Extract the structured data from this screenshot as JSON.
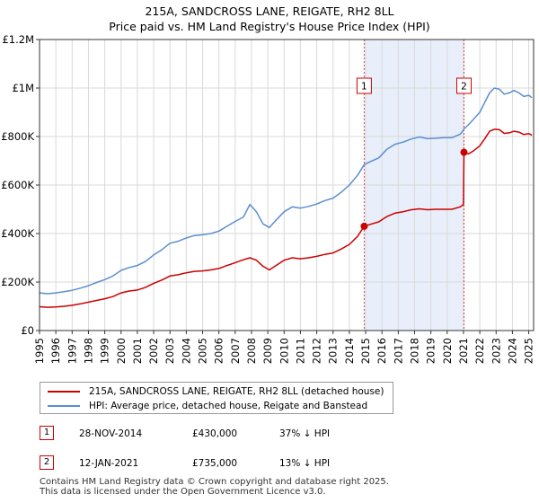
{
  "chart_data": {
    "type": "line",
    "title": "215A, SANDCROSS LANE, REIGATE, RH2 8LL",
    "subtitle": "Price paid vs. HM Land Registry's House Price Index (HPI)",
    "xlabel": "",
    "ylabel": "",
    "xlim": [
      1995,
      2025.3
    ],
    "ylim": [
      0,
      1200000
    ],
    "y_ticks": [
      {
        "value": 0,
        "label": "£0"
      },
      {
        "value": 200000,
        "label": "£200K"
      },
      {
        "value": 400000,
        "label": "£400K"
      },
      {
        "value": 600000,
        "label": "£600K"
      },
      {
        "value": 800000,
        "label": "£800K"
      },
      {
        "value": 1000000,
        "label": "£1M"
      },
      {
        "value": 1200000,
        "label": "£1.2M"
      }
    ],
    "x_ticks": [
      "1995",
      "1996",
      "1997",
      "1998",
      "1999",
      "2000",
      "2001",
      "2002",
      "2003",
      "2004",
      "2005",
      "2006",
      "2007",
      "2008",
      "2009",
      "2010",
      "2011",
      "2012",
      "2013",
      "2014",
      "2015",
      "2016",
      "2017",
      "2018",
      "2019",
      "2020",
      "2021",
      "2022",
      "2023",
      "2024",
      "2025"
    ],
    "grid": true,
    "series": [
      {
        "name": "215A, SANDCROSS LANE, REIGATE, RH2 8LL (detached house)",
        "color": "#cc0000",
        "x": [
          1995.0,
          1995.5,
          1996.0,
          1996.5,
          1997.0,
          1997.5,
          1998.0,
          1998.5,
          1999.0,
          1999.5,
          2000.0,
          2000.5,
          2001.0,
          2001.5,
          2002.0,
          2002.5,
          2003.0,
          2003.5,
          2004.0,
          2004.5,
          2005.0,
          2005.5,
          2006.0,
          2006.5,
          2007.0,
          2007.5,
          2007.9,
          2008.3,
          2008.7,
          2009.1,
          2009.5,
          2010.0,
          2010.5,
          2011.0,
          2011.5,
          2012.0,
          2012.5,
          2013.0,
          2013.5,
          2014.0,
          2014.5,
          2014.91,
          2015.3,
          2015.8,
          2016.3,
          2016.8,
          2017.3,
          2017.8,
          2018.3,
          2018.8,
          2019.3,
          2019.8,
          2020.3,
          2020.8,
          2021.0,
          2021.03,
          2021.3,
          2021.6,
          2022.0,
          2022.3,
          2022.6,
          2022.9,
          2023.2,
          2023.5,
          2023.8,
          2024.1,
          2024.4,
          2024.7,
          2025.0,
          2025.2
        ],
        "values": [
          98000,
          96000,
          97000,
          100000,
          104000,
          110000,
          117000,
          124000,
          131000,
          140000,
          155000,
          163000,
          167000,
          178000,
          195000,
          208000,
          225000,
          230000,
          238000,
          244000,
          246000,
          250000,
          256000,
          268000,
          280000,
          292000,
          300000,
          290000,
          265000,
          250000,
          268000,
          290000,
          300000,
          296000,
          300000,
          306000,
          314000,
          320000,
          336000,
          355000,
          388000,
          430000,
          438000,
          448000,
          470000,
          484000,
          490000,
          498000,
          502000,
          498000,
          500000,
          500000,
          500000,
          510000,
          520000,
          735000,
          728000,
          740000,
          762000,
          790000,
          822000,
          830000,
          828000,
          813000,
          815000,
          822000,
          818000,
          808000,
          812000,
          806000
        ]
      },
      {
        "name": "HPI: Average price, detached house, Reigate and Banstead",
        "color": "#5b8fcf",
        "x": [
          1995.0,
          1995.5,
          1996.0,
          1996.5,
          1997.0,
          1997.5,
          1998.0,
          1998.5,
          1999.0,
          1999.5,
          2000.0,
          2000.5,
          2001.0,
          2001.5,
          2002.0,
          2002.5,
          2003.0,
          2003.5,
          2004.0,
          2004.5,
          2005.0,
          2005.5,
          2006.0,
          2006.5,
          2007.0,
          2007.5,
          2007.9,
          2008.3,
          2008.7,
          2009.1,
          2009.5,
          2010.0,
          2010.5,
          2011.0,
          2011.5,
          2012.0,
          2012.5,
          2013.0,
          2013.5,
          2014.0,
          2014.5,
          2014.91,
          2015.3,
          2015.8,
          2016.3,
          2016.8,
          2017.3,
          2017.8,
          2018.3,
          2018.8,
          2019.3,
          2019.8,
          2020.3,
          2020.8,
          2021.0,
          2021.03,
          2021.3,
          2021.6,
          2022.0,
          2022.3,
          2022.6,
          2022.9,
          2023.2,
          2023.5,
          2023.8,
          2024.1,
          2024.4,
          2024.7,
          2025.0,
          2025.2
        ],
        "values": [
          155000,
          152000,
          155000,
          160000,
          166000,
          175000,
          185000,
          198000,
          210000,
          225000,
          248000,
          260000,
          268000,
          285000,
          312000,
          333000,
          360000,
          368000,
          382000,
          392000,
          395000,
          400000,
          410000,
          430000,
          450000,
          468000,
          520000,
          490000,
          440000,
          425000,
          455000,
          490000,
          510000,
          505000,
          512000,
          522000,
          536000,
          546000,
          570000,
          600000,
          640000,
          684000,
          697000,
          712000,
          747000,
          768000,
          777000,
          790000,
          798000,
          791000,
          793000,
          795000,
          795000,
          810000,
          826000,
          832000,
          848000,
          870000,
          900000,
          940000,
          980000,
          1000000,
          995000,
          975000,
          980000,
          990000,
          980000,
          965000,
          970000,
          960000
        ]
      }
    ],
    "annotations": [
      {
        "label": "1",
        "x": 2014.91
      },
      {
        "label": "2",
        "x": 2021.03
      }
    ],
    "shaded_region": {
      "x": [
        2014.91,
        2021.03
      ]
    },
    "sale_points": [
      {
        "x": 2014.91,
        "y": 430000
      },
      {
        "x": 2021.03,
        "y": 735000
      }
    ]
  },
  "sales": [
    {
      "index": "1",
      "date": "28-NOV-2014",
      "price": "£430,000",
      "hpi": "37% ↓ HPI"
    },
    {
      "index": "2",
      "date": "12-JAN-2021",
      "price": "£735,000",
      "hpi": "13% ↓ HPI"
    }
  ],
  "footer": {
    "line1": "Contains HM Land Registry data © Crown copyright and database right 2025.",
    "line2": "This data is licensed under the Open Government Licence v3.0."
  },
  "colors": {
    "price_line": "#cc0000",
    "hpi_line": "#5b8fcf",
    "shade": "#e8eefa",
    "grid": "#d9d9d9"
  }
}
